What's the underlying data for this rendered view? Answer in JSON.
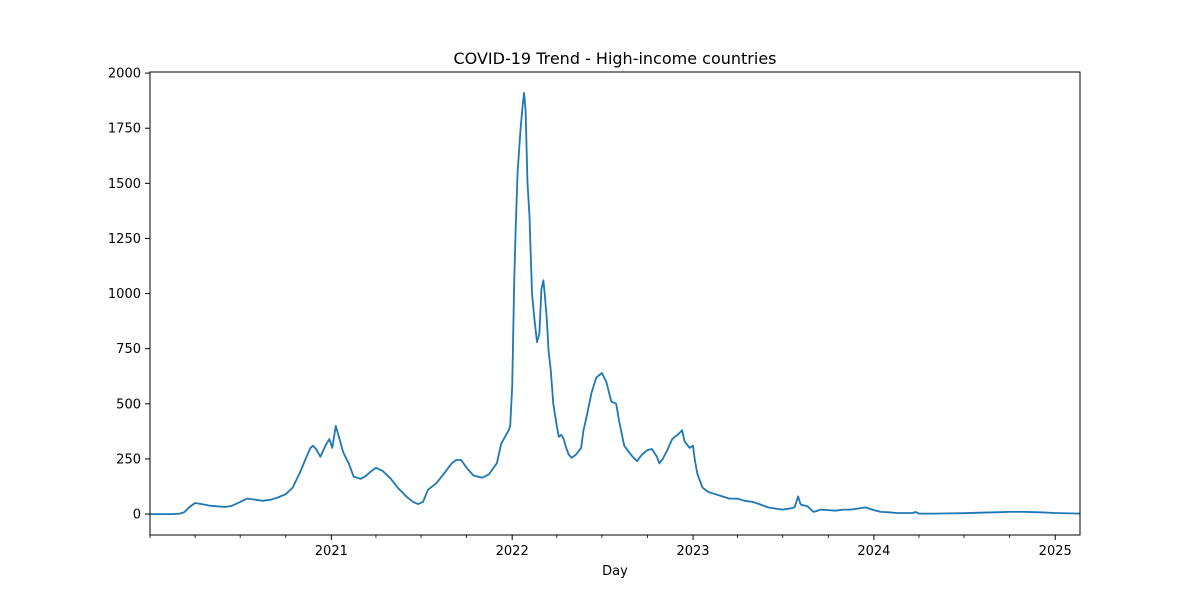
{
  "chart_data": {
    "type": "line",
    "title": "COVID-19 Trend - High-income countries",
    "xlabel": "Day",
    "ylabel": "",
    "x_axis": "date",
    "xlim": [
      "2020-01-01",
      "2025-02-20"
    ],
    "ylim": [
      -95,
      2005
    ],
    "yticks": [
      0,
      250,
      500,
      750,
      1000,
      1250,
      1500,
      1750,
      2000
    ],
    "xticks": [
      {
        "date": "2021-01-01",
        "label": "2021"
      },
      {
        "date": "2022-01-01",
        "label": "2022"
      },
      {
        "date": "2023-01-01",
        "label": "2023"
      },
      {
        "date": "2024-01-01",
        "label": "2024"
      },
      {
        "date": "2025-01-01",
        "label": "2025"
      }
    ],
    "minor_xticks": [
      "2020-01-01",
      "2020-04-01",
      "2020-07-01",
      "2020-10-01",
      "2021-04-01",
      "2021-07-01",
      "2021-10-01",
      "2022-04-01",
      "2022-07-01",
      "2022-10-01",
      "2023-04-01",
      "2023-07-01",
      "2023-10-01",
      "2024-04-01",
      "2024-07-01",
      "2024-10-01"
    ],
    "grid": false,
    "legend": "none",
    "colors": {
      "line": "#1f77b4",
      "axes": "#000000"
    },
    "series": [
      {
        "x": [
          "2020-01-01",
          "2020-02-15",
          "2020-03-01",
          "2020-03-10",
          "2020-03-20",
          "2020-04-01",
          "2020-04-15",
          "2020-05-01",
          "2020-05-15",
          "2020-06-01",
          "2020-06-15",
          "2020-07-01",
          "2020-07-15",
          "2020-08-01",
          "2020-08-15",
          "2020-09-01",
          "2020-09-15",
          "2020-10-01",
          "2020-10-15",
          "2020-11-01",
          "2020-11-10",
          "2020-11-20",
          "2020-11-25",
          "2020-12-01",
          "2020-12-10",
          "2020-12-20",
          "2020-12-28",
          "2021-01-03",
          "2021-01-10",
          "2021-01-15",
          "2021-01-25",
          "2021-02-05",
          "2021-02-15",
          "2021-03-01",
          "2021-03-10",
          "2021-03-20",
          "2021-04-01",
          "2021-04-15",
          "2021-05-01",
          "2021-05-15",
          "2021-06-01",
          "2021-06-15",
          "2021-06-25",
          "2021-07-05",
          "2021-07-15",
          "2021-08-01",
          "2021-08-15",
          "2021-09-01",
          "2021-09-10",
          "2021-09-20",
          "2021-10-01",
          "2021-10-15",
          "2021-11-01",
          "2021-11-15",
          "2021-12-01",
          "2021-12-10",
          "2021-12-20",
          "2021-12-25",
          "2021-12-28",
          "2022-01-01",
          "2022-01-05",
          "2022-01-08",
          "2022-01-12",
          "2022-01-15",
          "2022-01-18",
          "2022-01-22",
          "2022-01-25",
          "2022-01-28",
          "2022-02-01",
          "2022-02-05",
          "2022-02-10",
          "2022-02-15",
          "2022-02-20",
          "2022-02-25",
          "2022-03-01",
          "2022-03-05",
          "2022-03-08",
          "2022-03-12",
          "2022-03-15",
          "2022-03-20",
          "2022-03-25",
          "2022-04-01",
          "2022-04-05",
          "2022-04-10",
          "2022-04-15",
          "2022-04-20",
          "2022-04-25",
          "2022-05-01",
          "2022-05-10",
          "2022-05-20",
          "2022-05-25",
          "2022-06-01",
          "2022-06-10",
          "2022-06-20",
          "2022-07-01",
          "2022-07-10",
          "2022-07-20",
          "2022-07-30",
          "2022-08-05",
          "2022-08-15",
          "2022-08-25",
          "2022-09-01",
          "2022-09-10",
          "2022-09-20",
          "2022-10-01",
          "2022-10-10",
          "2022-10-20",
          "2022-10-25",
          "2022-11-01",
          "2022-11-10",
          "2022-11-20",
          "2022-12-01",
          "2022-12-10",
          "2022-12-15",
          "2022-12-25",
          "2023-01-01",
          "2023-01-05",
          "2023-01-10",
          "2023-01-20",
          "2023-02-01",
          "2023-02-15",
          "2023-03-01",
          "2023-03-15",
          "2023-04-01",
          "2023-04-15",
          "2023-05-01",
          "2023-05-15",
          "2023-06-01",
          "2023-06-15",
          "2023-07-01",
          "2023-07-15",
          "2023-07-25",
          "2023-08-01",
          "2023-08-05",
          "2023-08-08",
          "2023-08-12",
          "2023-08-20",
          "2023-09-01",
          "2023-09-10",
          "2023-09-15",
          "2023-10-01",
          "2023-10-15",
          "2023-11-01",
          "2023-11-15",
          "2023-12-01",
          "2023-12-15",
          "2024-01-01",
          "2024-01-15",
          "2024-02-01",
          "2024-02-15",
          "2024-03-01",
          "2024-03-20",
          "2024-03-25",
          "2024-04-01",
          "2024-05-01",
          "2024-06-01",
          "2024-07-01",
          "2024-08-01",
          "2024-09-01",
          "2024-10-01",
          "2024-11-01",
          "2024-12-01",
          "2025-01-01",
          "2025-02-01",
          "2025-02-20"
        ],
        "y": [
          0,
          0,
          2,
          8,
          30,
          50,
          45,
          38,
          35,
          32,
          38,
          55,
          70,
          65,
          60,
          65,
          75,
          90,
          120,
          200,
          250,
          300,
          310,
          295,
          260,
          310,
          340,
          300,
          400,
          360,
          280,
          230,
          170,
          160,
          170,
          190,
          210,
          195,
          160,
          120,
          80,
          55,
          45,
          55,
          110,
          140,
          180,
          230,
          245,
          245,
          210,
          175,
          165,
          180,
          230,
          320,
          360,
          380,
          400,
          580,
          1050,
          1300,
          1550,
          1650,
          1750,
          1850,
          1910,
          1830,
          1500,
          1350,
          1000,
          880,
          780,
          820,
          1020,
          1060,
          990,
          880,
          750,
          650,
          500,
          400,
          350,
          360,
          340,
          300,
          270,
          255,
          270,
          300,
          380,
          450,
          550,
          620,
          640,
          600,
          510,
          500,
          420,
          310,
          280,
          260,
          240,
          270,
          290,
          295,
          260,
          230,
          250,
          290,
          340,
          360,
          380,
          330,
          300,
          310,
          240,
          180,
          120,
          100,
          90,
          80,
          70,
          70,
          60,
          55,
          45,
          30,
          25,
          20,
          25,
          30,
          80,
          50,
          40,
          40,
          35,
          10,
          15,
          20,
          18,
          15,
          20,
          20,
          25,
          30,
          18,
          10,
          8,
          5,
          5,
          5,
          10,
          2,
          2,
          3,
          4,
          6,
          8,
          10,
          10,
          8,
          5,
          3,
          2
        ]
      }
    ]
  }
}
